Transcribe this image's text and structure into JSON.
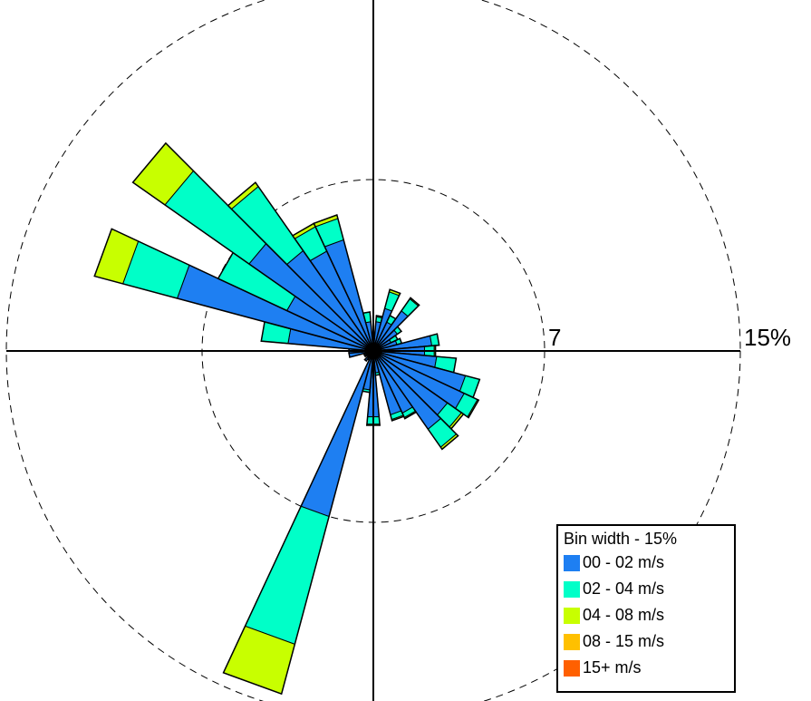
{
  "chart_data": {
    "type": "wind-rose",
    "title": "",
    "ring_labels": [
      "7",
      "15%"
    ],
    "ring_values": [
      7,
      15
    ],
    "direction_bins": 36,
    "legend": {
      "title": "Bin width - 15%",
      "position": "bottom-right",
      "entries": [
        {
          "label": "00 - 02 m/s",
          "color": "#1e7ff2"
        },
        {
          "label": "02 - 04 m/s",
          "color": "#00ffc8"
        },
        {
          "label": "04 - 08 m/s",
          "color": "#c8ff00"
        },
        {
          "label": "08 - 15 m/s",
          "color": "#ffc000"
        },
        {
          "label": "15+ m/s",
          "color": "#ff6000"
        }
      ]
    },
    "series_colors": [
      "#1e7ff2",
      "#00ffc8",
      "#c8ff00",
      "#ffc000",
      "#ff6000"
    ],
    "speed_bins": [
      "00 - 02 m/s",
      "02 - 04 m/s",
      "04 - 08 m/s",
      "08 - 15 m/s",
      "15+ m/s"
    ],
    "petals": [
      {
        "direction": 0,
        "values": [
          0.3,
          0.1,
          0,
          0,
          0
        ]
      },
      {
        "direction": 10,
        "values": [
          1.2,
          0.2,
          0.05,
          0,
          0
        ]
      },
      {
        "direction": 20,
        "values": [
          1.8,
          0.7,
          0.1,
          0,
          0
        ]
      },
      {
        "direction": 30,
        "values": [
          1.3,
          0.3,
          0,
          0,
          0
        ]
      },
      {
        "direction": 40,
        "values": [
          2.0,
          0.6,
          0.05,
          0,
          0
        ]
      },
      {
        "direction": 50,
        "values": [
          1.2,
          0.2,
          0,
          0,
          0
        ]
      },
      {
        "direction": 60,
        "values": [
          0.8,
          0.3,
          0,
          0,
          0
        ]
      },
      {
        "direction": 70,
        "values": [
          1.0,
          0.2,
          0,
          0,
          0
        ]
      },
      {
        "direction": 80,
        "values": [
          2.4,
          0.3,
          0,
          0,
          0
        ]
      },
      {
        "direction": 90,
        "values": [
          2.1,
          0.4,
          0.05,
          0,
          0
        ]
      },
      {
        "direction": 100,
        "values": [
          2.6,
          0.8,
          0,
          0,
          0
        ]
      },
      {
        "direction": 110,
        "values": [
          3.9,
          0.6,
          0,
          0,
          0
        ]
      },
      {
        "direction": 120,
        "values": [
          4.1,
          0.6,
          0.05,
          0,
          0
        ]
      },
      {
        "direction": 130,
        "values": [
          3.7,
          0.7,
          0.1,
          0,
          0
        ]
      },
      {
        "direction": 140,
        "values": [
          3.9,
          0.9,
          0.1,
          0,
          0
        ]
      },
      {
        "direction": 150,
        "values": [
          2.8,
          0.2,
          0.05,
          0,
          0
        ]
      },
      {
        "direction": 160,
        "values": [
          2.7,
          0.2,
          0.05,
          0,
          0
        ]
      },
      {
        "direction": 170,
        "values": [
          0.9,
          0.1,
          0,
          0,
          0
        ]
      },
      {
        "direction": 180,
        "values": [
          2.7,
          0.3,
          0.05,
          0,
          0
        ]
      },
      {
        "direction": 190,
        "values": [
          1.6,
          0.1,
          0,
          0,
          0
        ]
      },
      {
        "direction": 200,
        "values": [
          7.0,
          5.4,
          2.1,
          0,
          0
        ]
      },
      {
        "direction": 210,
        "values": [
          0.4,
          0,
          0,
          0,
          0
        ]
      },
      {
        "direction": 220,
        "values": [
          0.5,
          0,
          0,
          0,
          0
        ]
      },
      {
        "direction": 230,
        "values": [
          0.3,
          0,
          0,
          0,
          0
        ]
      },
      {
        "direction": 240,
        "values": [
          0.4,
          0,
          0,
          0,
          0
        ]
      },
      {
        "direction": 250,
        "values": [
          0.4,
          0,
          0,
          0,
          0
        ]
      },
      {
        "direction": 260,
        "values": [
          1.0,
          0,
          0,
          0,
          0
        ]
      },
      {
        "direction": 270,
        "values": [
          1.0,
          0,
          0,
          0,
          0
        ]
      },
      {
        "direction": 280,
        "values": [
          3.5,
          1.1,
          0,
          0,
          0
        ]
      },
      {
        "direction": 290,
        "values": [
          8.3,
          2.3,
          1.2,
          0,
          0
        ]
      },
      {
        "direction": 300,
        "values": [
          3.9,
          3.1,
          0,
          0,
          0
        ]
      },
      {
        "direction": 310,
        "values": [
          6.2,
          4.2,
          1.6,
          0,
          0
        ]
      },
      {
        "direction": 320,
        "values": [
          5.0,
          3.2,
          0.2,
          0,
          0
        ]
      },
      {
        "direction": 330,
        "values": [
          4.5,
          1.1,
          0.15,
          0,
          0
        ]
      },
      {
        "direction": 340,
        "values": [
          4.7,
          0.9,
          0.15,
          0,
          0
        ]
      },
      {
        "direction": 350,
        "values": [
          1.2,
          0.4,
          0,
          0,
          0
        ]
      }
    ]
  }
}
